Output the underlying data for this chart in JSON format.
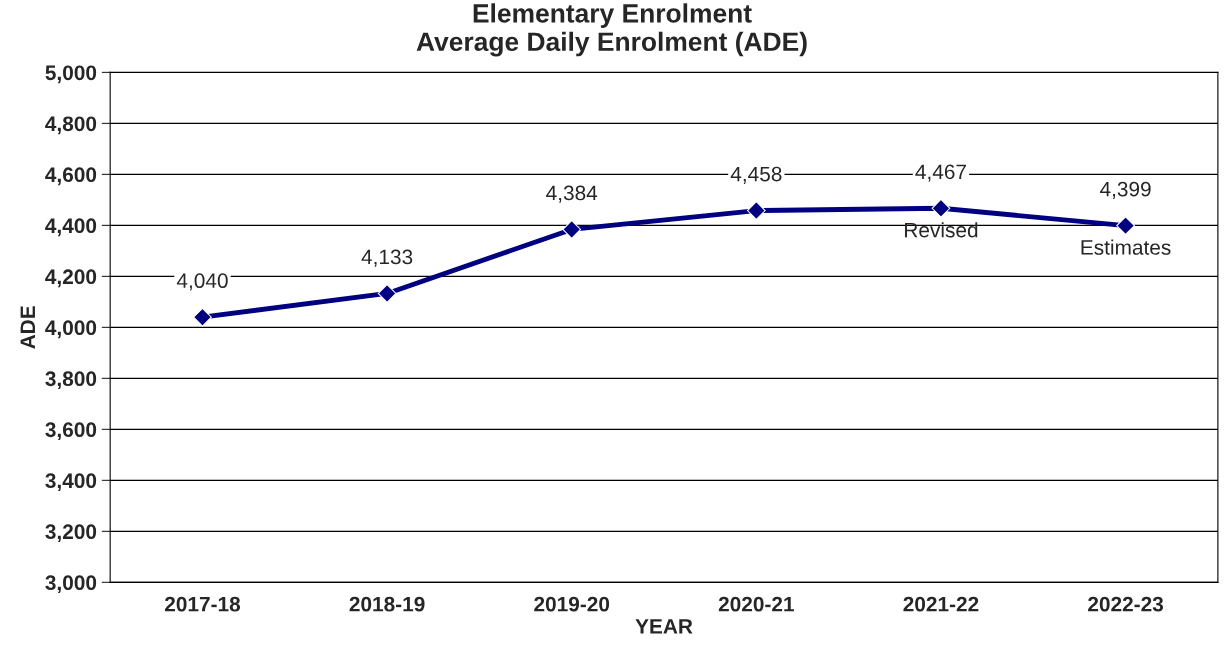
{
  "chart_data": {
    "type": "line",
    "title": "Elementary Enrolment",
    "subtitle": "Average Daily Enrolment (ADE)",
    "xlabel": "YEAR",
    "ylabel": "ADE",
    "categories": [
      "2017-18",
      "2018-19",
      "2019-20",
      "2020-21",
      "2021-22",
      "2022-23"
    ],
    "series": [
      {
        "color": "#000080",
        "values": [
          4040,
          4133,
          4384,
          4458,
          4467,
          4399
        ],
        "value_labels": [
          "4,040",
          "4,133",
          "4,384",
          "4,458",
          "4,467",
          "4,399"
        ]
      }
    ],
    "annotations": [
      {
        "text": "Revised",
        "x": "2021-22",
        "y": 4467
      },
      {
        "text": "Estimates",
        "x": "2022-23",
        "y": 4399
      }
    ],
    "ylim": [
      3000,
      5000
    ],
    "yticks": [
      {
        "value": 3000,
        "label": "3,000"
      },
      {
        "value": 3200,
        "label": "3,200"
      },
      {
        "value": 3400,
        "label": "3,400"
      },
      {
        "value": 3600,
        "label": "3,600"
      },
      {
        "value": 3800,
        "label": "3,800"
      },
      {
        "value": 4000,
        "label": "4,000"
      },
      {
        "value": 4200,
        "label": "4,200"
      },
      {
        "value": 4400,
        "label": "4,400"
      },
      {
        "value": 4600,
        "label": "4,600"
      },
      {
        "value": 4800,
        "label": "4,800"
      },
      {
        "value": 5000,
        "label": "5,000"
      }
    ],
    "grid": "y",
    "marker": "diamond",
    "line_style": "solid"
  }
}
